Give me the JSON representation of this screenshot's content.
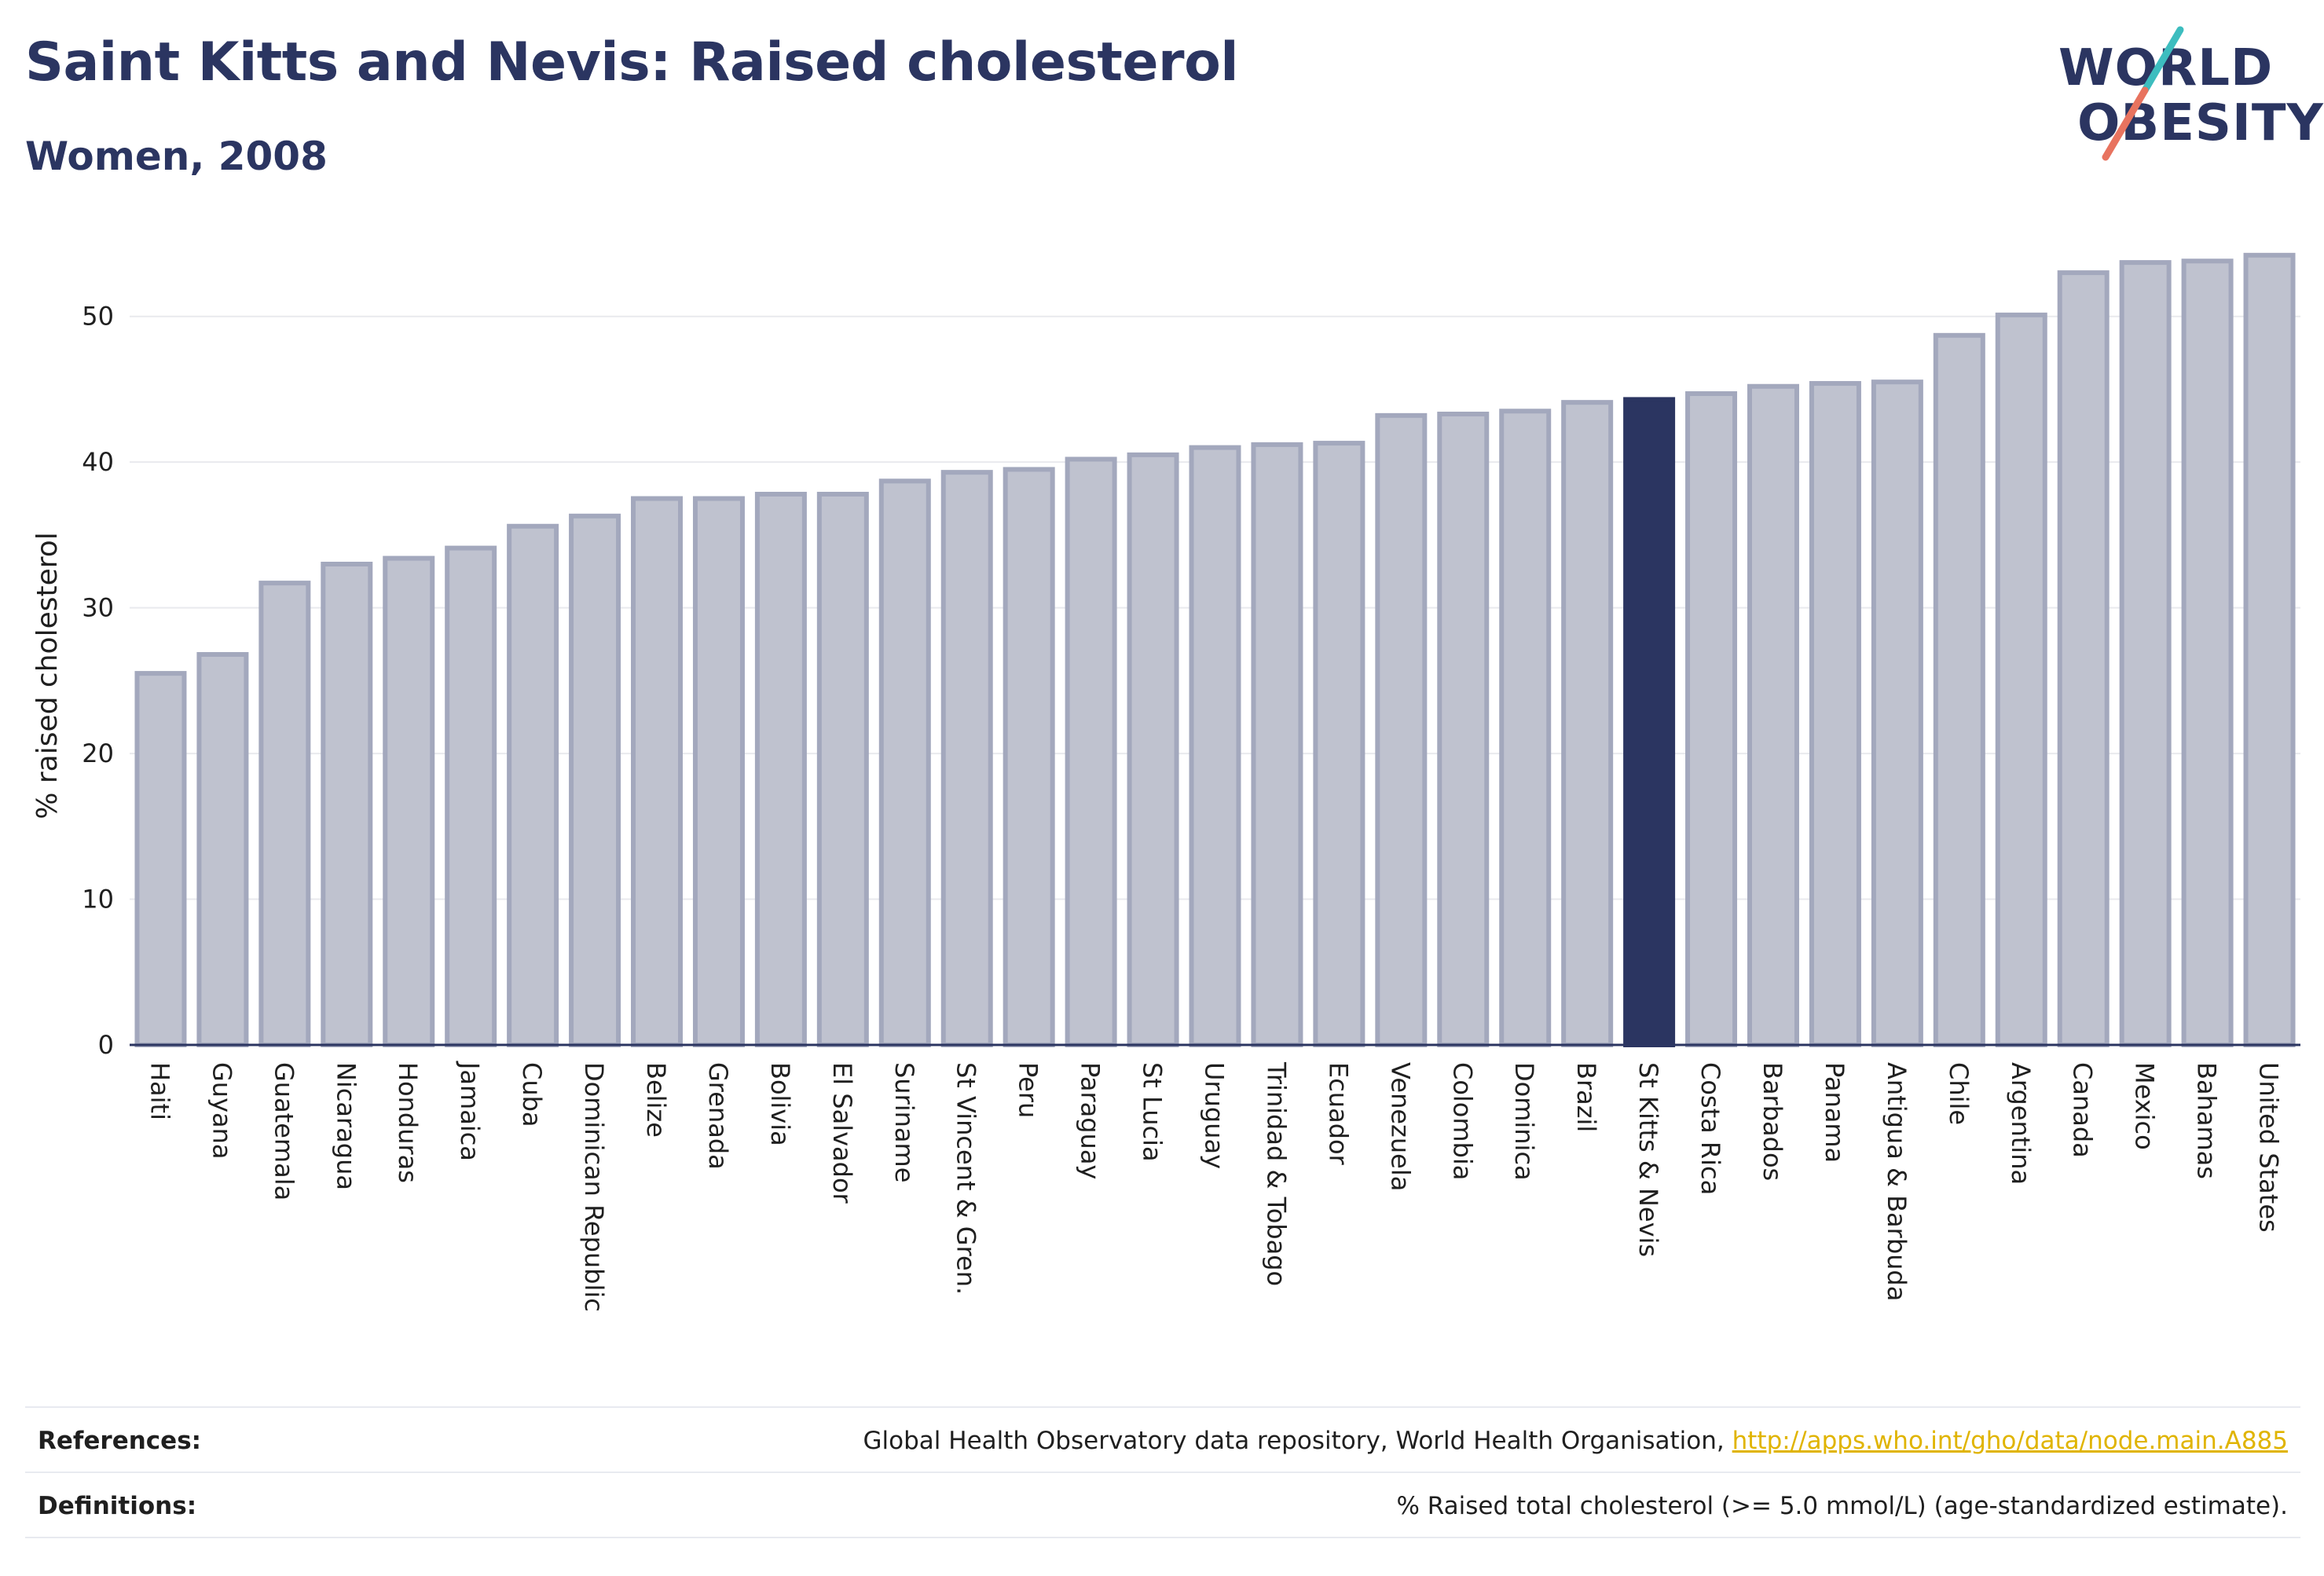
{
  "header": {
    "title": "Saint Kitts and Nevis: Raised cholesterol",
    "subtitle": "Women, 2008"
  },
  "logo": {
    "line1": "WORLD",
    "line2": "OBESITY",
    "colors": {
      "text": "#2b3561",
      "slash_top": "#3dbdbf",
      "slash_bottom": "#e8735f"
    }
  },
  "colors": {
    "bar_fill": "#bfc2cf",
    "bar_stroke": "#a3a8bd",
    "highlight_fill": "#2b3561",
    "grid": "#e9eaee",
    "axis_line": "#2b3561"
  },
  "chart_data": {
    "type": "bar",
    "ylabel": "% raised cholesterol",
    "ylim": [
      0,
      55
    ],
    "yticks": [
      0,
      10,
      20,
      30,
      40,
      50
    ],
    "grid": true,
    "highlight": "St Kitts & Nevis",
    "categories": [
      "Haiti",
      "Guyana",
      "Guatemala",
      "Nicaragua",
      "Honduras",
      "Jamaica",
      "Cuba",
      "Dominican Republic",
      "Belize",
      "Grenada",
      "Bolivia",
      "El Salvador",
      "Suriname",
      "St Vincent & Gren.",
      "Peru",
      "Paraguay",
      "St Lucia",
      "Uruguay",
      "Trinidad & Tobago",
      "Ecuador",
      "Venezuela",
      "Colombia",
      "Dominica",
      "Brazil",
      "St Kitts & Nevis",
      "Costa Rica",
      "Barbados",
      "Panama",
      "Antigua & Barbuda",
      "Chile",
      "Argentina",
      "Canada",
      "Mexico",
      "Bahamas",
      "United States"
    ],
    "values": [
      25.5,
      26.8,
      31.7,
      33.0,
      33.4,
      34.1,
      35.6,
      36.3,
      37.5,
      37.5,
      37.8,
      37.8,
      38.7,
      39.3,
      39.5,
      40.2,
      40.5,
      41.0,
      41.2,
      41.3,
      43.2,
      43.3,
      43.5,
      44.1,
      44.3,
      44.7,
      45.2,
      45.4,
      45.5,
      48.7,
      50.1,
      53.0,
      53.7,
      53.8,
      54.2
    ]
  },
  "footer": {
    "references_label": "References:",
    "references_text": "Global Health Observatory data repository, World Health Organisation, ",
    "references_link": "http://apps.who.int/gho/data/node.main.A885",
    "definitions_label": "Definitions:",
    "definitions_text": "% Raised total cholesterol (>= 5.0 mmol/L) (age-standardized estimate)."
  }
}
